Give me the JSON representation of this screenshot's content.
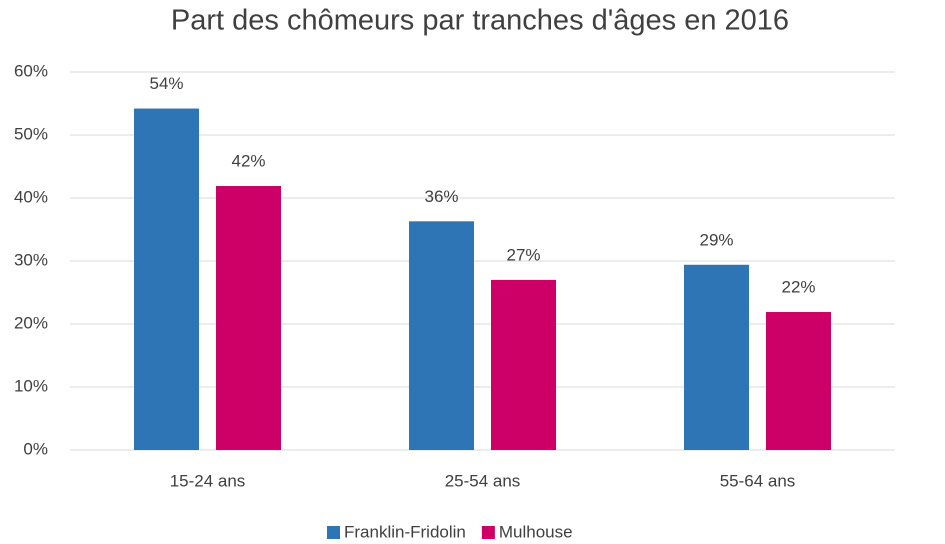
{
  "chart_data": {
    "type": "bar",
    "title": "Part des chômeurs par tranches d'âges en 2016",
    "categories": [
      "15-24 ans",
      "25-54 ans",
      "55-64 ans"
    ],
    "series": [
      {
        "name": "Franklin-Fridolin",
        "color": "#2e75b6",
        "values": [
          54.2,
          36.3,
          29.4
        ],
        "value_labels": [
          "54%",
          "36%",
          "29%"
        ]
      },
      {
        "name": "Mulhouse",
        "color": "#cc0066",
        "values": [
          41.9,
          27,
          21.9
        ],
        "value_labels": [
          "42%",
          "27%",
          "22%"
        ]
      }
    ],
    "ylim": [
      0,
      60
    ],
    "yticks": [
      {
        "value": 0,
        "label": "0%"
      },
      {
        "value": 10,
        "label": "10%"
      },
      {
        "value": 20,
        "label": "20%"
      },
      {
        "value": 30,
        "label": "30%"
      },
      {
        "value": 40,
        "label": "40%"
      },
      {
        "value": 50,
        "label": "50%"
      },
      {
        "value": 60,
        "label": "60%"
      }
    ],
    "grid": true,
    "legend": "bottom"
  }
}
